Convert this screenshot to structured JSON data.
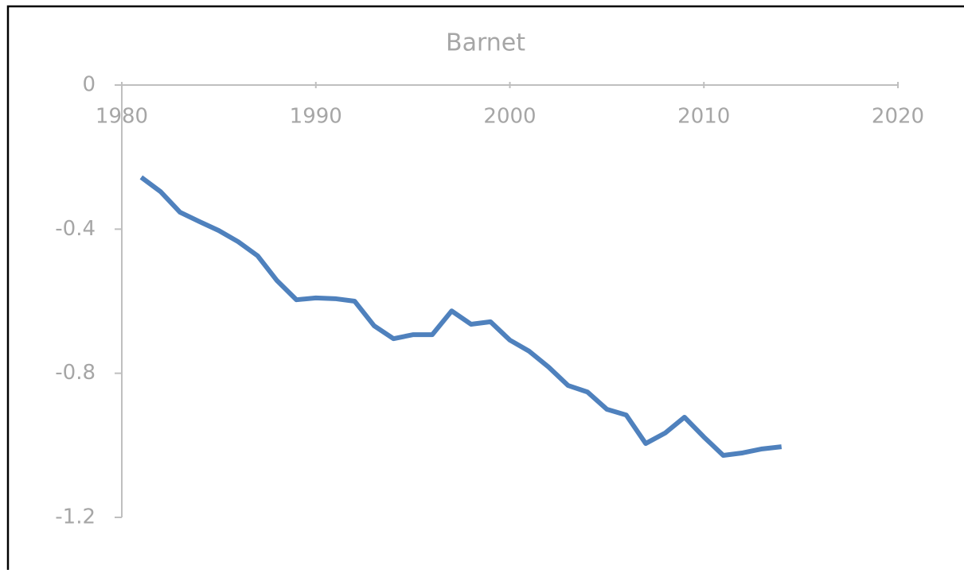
{
  "chart_data": {
    "type": "line",
    "title": "Barnet",
    "x": [
      1981,
      1982,
      1983,
      1984,
      1985,
      1986,
      1987,
      1988,
      1989,
      1990,
      1991,
      1992,
      1993,
      1994,
      1995,
      1996,
      1997,
      1998,
      1999,
      2000,
      2001,
      2002,
      2003,
      2004,
      2005,
      2006,
      2007,
      2008,
      2009,
      2010,
      2011,
      2012,
      2013,
      2014
    ],
    "series": [
      {
        "name": "Barnet",
        "color": "#4f81bd",
        "values": [
          -0.256,
          -0.296,
          -0.353,
          -0.379,
          -0.404,
          -0.435,
          -0.474,
          -0.543,
          -0.596,
          -0.591,
          -0.593,
          -0.6,
          -0.668,
          -0.704,
          -0.693,
          -0.693,
          -0.627,
          -0.664,
          -0.657,
          -0.708,
          -0.739,
          -0.783,
          -0.834,
          -0.852,
          -0.9,
          -0.916,
          -0.995,
          -0.966,
          -0.922,
          -0.977,
          -1.028,
          -1.021,
          -1.01,
          -1.004
        ]
      }
    ],
    "xlim": [
      1980,
      2020
    ],
    "xticks": [
      1980,
      1990,
      2000,
      2010,
      2020
    ],
    "ylim": [
      -1.2,
      0
    ],
    "yticks": [
      0,
      -0.4,
      -0.8,
      -1.2
    ],
    "grid": false
  }
}
